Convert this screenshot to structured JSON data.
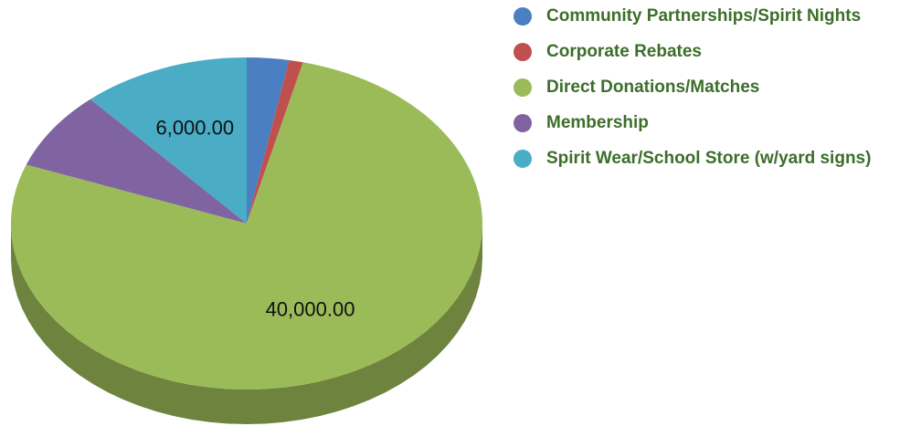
{
  "chart_data": {
    "type": "pie",
    "title": "",
    "categories": [
      "Community Partnerships/Spirit Nights",
      "Corporate Rebates",
      "Direct Donations/Matches",
      "Membership",
      "Spirit Wear/School Store (w/yard signs)"
    ],
    "values": [
      1500,
      500,
      40000,
      4000,
      6000
    ],
    "colors": [
      "#4a7fc1",
      "#c0504d",
      "#9bbb59",
      "#8064a2",
      "#4bacc6"
    ],
    "data_labels": [
      {
        "category_index": 2,
        "text": "40,000.00"
      },
      {
        "category_index": 4,
        "text": "6,000.00"
      }
    ],
    "legend_position": "right",
    "style": "3d"
  }
}
